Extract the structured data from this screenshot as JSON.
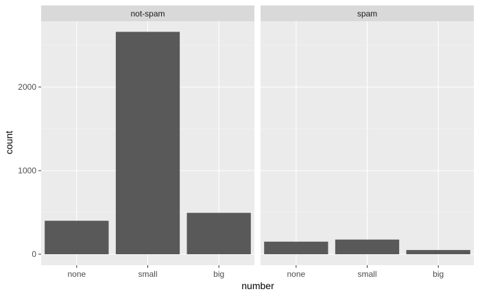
{
  "chart_data": {
    "type": "bar",
    "facet_variable": "class",
    "xlabel": "number",
    "ylabel": "count",
    "categories": [
      "none",
      "small",
      "big"
    ],
    "ylim": [
      0,
      2800
    ],
    "yticks": [
      0,
      1000,
      2000
    ],
    "grid": true,
    "facets": [
      {
        "label": "not-spam",
        "values": [
          400,
          2660,
          495
        ]
      },
      {
        "label": "spam",
        "values": [
          150,
          175,
          50
        ]
      }
    ]
  },
  "colors": {
    "panel_background": "#ebebeb",
    "strip_background": "#d9d9d9",
    "grid_major": "#ffffff",
    "bar_fill": "#595959"
  }
}
